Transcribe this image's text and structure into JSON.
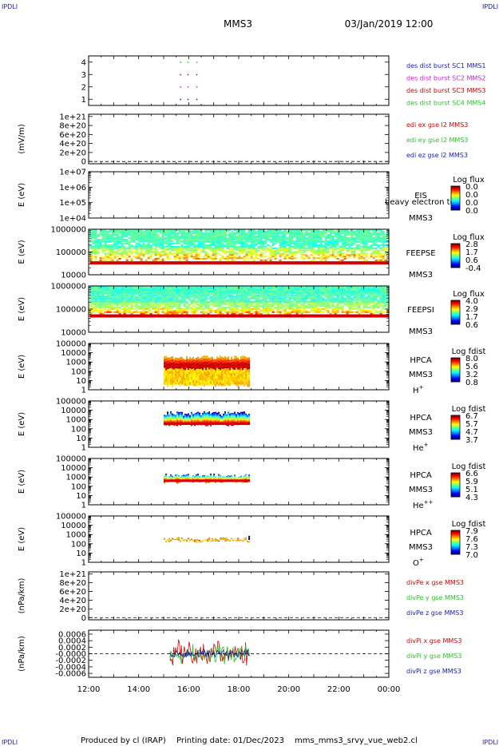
{
  "header": {
    "corner": "IPDLI",
    "title": "MMS3",
    "datetime": "03/Jan/2019 12:00"
  },
  "footer": {
    "producer": "Produced by cl (IRAP)",
    "printing": "Printing date: 01/Dec/2023",
    "file": "mms_mms3_srvy_vue_web2.cl"
  },
  "time_axis": {
    "range_hours": [
      12,
      24
    ],
    "ticks": [
      "12:00",
      "14:00",
      "16:00",
      "18:00",
      "20:00",
      "22:00",
      "00:00"
    ]
  },
  "colors": {
    "mms1": "#1a1acc",
    "mms2": "#cc22cc",
    "mms3": "#dd0000",
    "mms4": "#22cc22",
    "ex": "#dd0000",
    "ey": "#22cc22",
    "ez": "#1a1acc"
  },
  "colorbars": [
    {
      "title": "Log flux",
      "ticks": [
        "0.0",
        "0.0",
        "0.0",
        "0.0"
      ]
    },
    {
      "title": "Log flux",
      "ticks": [
        "2.8",
        "1.7",
        "0.6",
        "-0.4"
      ]
    },
    {
      "title": "Log flux",
      "ticks": [
        "4.0",
        "2.9",
        "1.7",
        "0.6"
      ]
    },
    {
      "title": "Log fdist",
      "ticks": [
        "8.0",
        "5.6",
        "3.2",
        "0.8"
      ]
    },
    {
      "title": "Log fdist",
      "ticks": [
        "6.7",
        "5.7",
        "4.7",
        "3.7"
      ]
    },
    {
      "title": "Log fdist",
      "ticks": [
        "6.6",
        "5.9",
        "5.1",
        "4.3"
      ]
    },
    {
      "title": "Log fdist",
      "ticks": [
        "7.9",
        "7.6",
        "7.3",
        "7.0"
      ]
    }
  ],
  "chart_data": [
    {
      "type": "scatter",
      "panel": "burst",
      "y_ticks": [
        "4",
        "3",
        "2",
        "1"
      ],
      "series": [
        {
          "name": "des dist burst SC1 MMS1",
          "y": 1,
          "x_hours": [
            15.65,
            15.95,
            16.3
          ]
        },
        {
          "name": "des dist burst SC2 MMS2",
          "y": 2,
          "x_hours": [
            15.65,
            15.95,
            16.3
          ]
        },
        {
          "name": "des dist burst SC3 MMS3",
          "y": 3,
          "x_hours": [
            15.65,
            15.95,
            16.3
          ]
        },
        {
          "name": "des dist burst SC4 MMS4",
          "y": 4,
          "x_hours": [
            15.65,
            15.95,
            16.3
          ]
        }
      ]
    },
    {
      "type": "line",
      "panel": "edi",
      "ylabel": "(mV/m)",
      "y_ticks": [
        "1e+21",
        "8e+20",
        "6e+20",
        "4e+20",
        "2e+20",
        "0"
      ],
      "series": [
        {
          "name": "edi ex gse l2 MMS3"
        },
        {
          "name": "edi ey gse l2 MMS3"
        },
        {
          "name": "edi ez gse l2 MMS3"
        }
      ]
    },
    {
      "type": "heatmap",
      "panel": "eis",
      "ylabel": "E (eV)",
      "ylim": [
        10000,
        10000000
      ],
      "log": true,
      "y_ticks": [
        "1e+07",
        "1e+06",
        "1e+05",
        "1e+04"
      ],
      "label": "EIS",
      "overlay_text": "heavy electron to",
      "sc": "MMS3"
    },
    {
      "type": "heatmap",
      "panel": "feepse",
      "ylabel": "E (eV)",
      "ylim": [
        10000,
        1000000
      ],
      "log": true,
      "y_ticks": [
        "1000000",
        "100000",
        "10000"
      ],
      "label": "FEEPSE",
      "sc": "MMS3",
      "time_span_hours": [
        12.05,
        24
      ]
    },
    {
      "type": "heatmap",
      "panel": "feepsi",
      "ylabel": "E (eV)",
      "ylim": [
        10000,
        1000000
      ],
      "log": true,
      "y_ticks": [
        "1000000",
        "100000",
        "10000"
      ],
      "label": "FEEPSI",
      "sc": "MMS3",
      "time_span_hours": [
        12.05,
        24
      ]
    },
    {
      "type": "heatmap",
      "panel": "hpca_h",
      "ylabel": "E (eV)",
      "ylim": [
        1,
        100000
      ],
      "log": true,
      "y_ticks": [
        "100000",
        "10000",
        "1000",
        "100",
        "10",
        "1"
      ],
      "label": "HPCA",
      "sc": "MMS3",
      "species": "H",
      "charge": "+",
      "time_span_hours": [
        15.0,
        18.45
      ]
    },
    {
      "type": "heatmap",
      "panel": "hpca_he",
      "ylabel": "E (eV)",
      "ylim": [
        1,
        100000
      ],
      "log": true,
      "y_ticks": [
        "100000",
        "10000",
        "1000",
        "100",
        "10",
        "1"
      ],
      "label": "HPCA",
      "sc": "MMS3",
      "species": "He",
      "charge": "+",
      "time_span_hours": [
        15.0,
        18.45
      ]
    },
    {
      "type": "heatmap",
      "panel": "hpca_he2",
      "ylabel": "E (eV)",
      "ylim": [
        1,
        100000
      ],
      "log": true,
      "y_ticks": [
        "100000",
        "10000",
        "1000",
        "100",
        "10",
        "1"
      ],
      "label": "HPCA",
      "sc": "MMS3",
      "species": "He",
      "charge": "++",
      "time_span_hours": [
        15.0,
        18.45
      ]
    },
    {
      "type": "heatmap",
      "panel": "hpca_o",
      "ylabel": "E (eV)",
      "ylim": [
        1,
        100000
      ],
      "log": true,
      "y_ticks": [
        "100000",
        "10000",
        "1000",
        "100",
        "10",
        "1"
      ],
      "label": "HPCA",
      "sc": "MMS3",
      "species": "O",
      "charge": "+",
      "time_span_hours": [
        15.0,
        18.45
      ]
    },
    {
      "type": "line",
      "panel": "divpe",
      "ylabel": "(nPa/km)",
      "y_ticks": [
        "1e+21",
        "8e+20",
        "6e+20",
        "4e+20",
        "2e+20",
        "0"
      ],
      "series": [
        {
          "name": "divPe x gse MMS3"
        },
        {
          "name": "divPe y gse MMS3"
        },
        {
          "name": "divPe z gse MMS3"
        }
      ]
    },
    {
      "type": "line",
      "panel": "divpi",
      "ylabel": "(nPa/km)",
      "y_ticks": [
        "0.0006",
        "0.0004",
        "0.0002",
        "-0.0000",
        "-0.0002",
        "-0.0004",
        "-0.0006"
      ],
      "ylim": [
        -0.0006,
        0.0006
      ],
      "time_span_hours": [
        15.25,
        18.45
      ],
      "series": [
        {
          "name": "divPi x gse MMS3"
        },
        {
          "name": "divPi y gse MMS3"
        },
        {
          "name": "divPi z gse MMS3"
        }
      ]
    }
  ]
}
